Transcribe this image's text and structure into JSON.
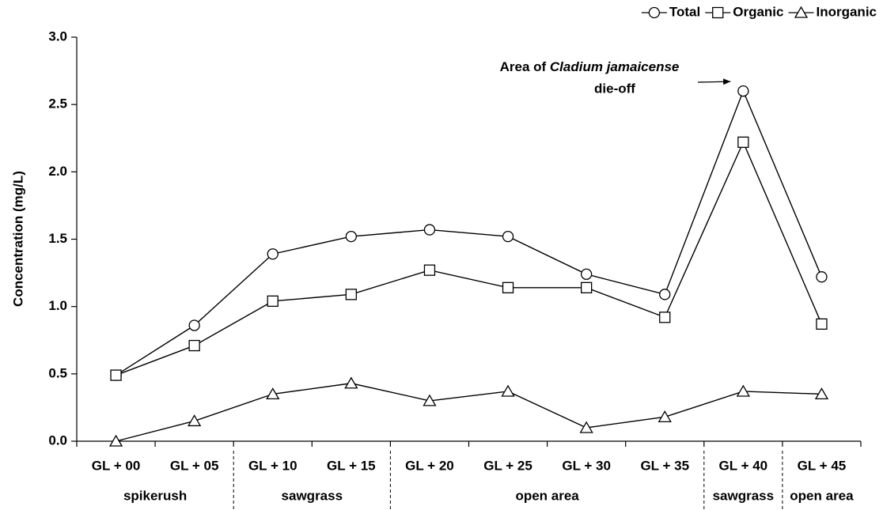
{
  "chart_data": {
    "type": "line",
    "y_label": "Concentration (mg/L)",
    "categories": [
      "GL + 00",
      "GL + 05",
      "GL + 10",
      "GL + 15",
      "GL + 20",
      "GL + 25",
      "GL + 30",
      "GL + 35",
      "GL + 40",
      "GL + 45"
    ],
    "groups": [
      {
        "label": "spikerush",
        "span": [
          0,
          1
        ]
      },
      {
        "label": "sawgrass",
        "span": [
          2,
          3
        ]
      },
      {
        "label": "open area",
        "span": [
          4,
          7
        ]
      },
      {
        "label": "sawgrass",
        "span": [
          8,
          8
        ]
      },
      {
        "label": "open area",
        "span": [
          9,
          9
        ]
      }
    ],
    "series": [
      {
        "name": "Total",
        "color": "#000000",
        "marker": "circle",
        "values": [
          0.49,
          0.86,
          1.39,
          1.52,
          1.57,
          1.52,
          1.24,
          1.09,
          2.6,
          1.22
        ]
      },
      {
        "name": "Organic",
        "color": "#000000",
        "marker": "square",
        "values": [
          0.49,
          0.71,
          1.04,
          1.09,
          1.27,
          1.14,
          1.14,
          0.92,
          2.22,
          0.87
        ]
      },
      {
        "name": "Inorganic",
        "color": "#000000",
        "marker": "triangle",
        "values": [
          0.0,
          0.15,
          0.35,
          0.43,
          0.3,
          0.37,
          0.1,
          0.18,
          0.37,
          0.35
        ]
      }
    ],
    "ylim": [
      0,
      3
    ],
    "yticks": [
      {
        "value": 0,
        "label": "0.0"
      },
      0.5,
      {
        "value": 1,
        "label": "1.0"
      },
      1.5,
      {
        "value": 2,
        "label": "2.0"
      },
      2.5,
      {
        "value": 3,
        "label": "3.0"
      }
    ],
    "annotation": {
      "line1": [
        "Area of ",
        "Cladium jamaicense"
      ],
      "line2": "die-off",
      "target_category": 8,
      "target_series": 0
    },
    "legend": "top-right"
  }
}
